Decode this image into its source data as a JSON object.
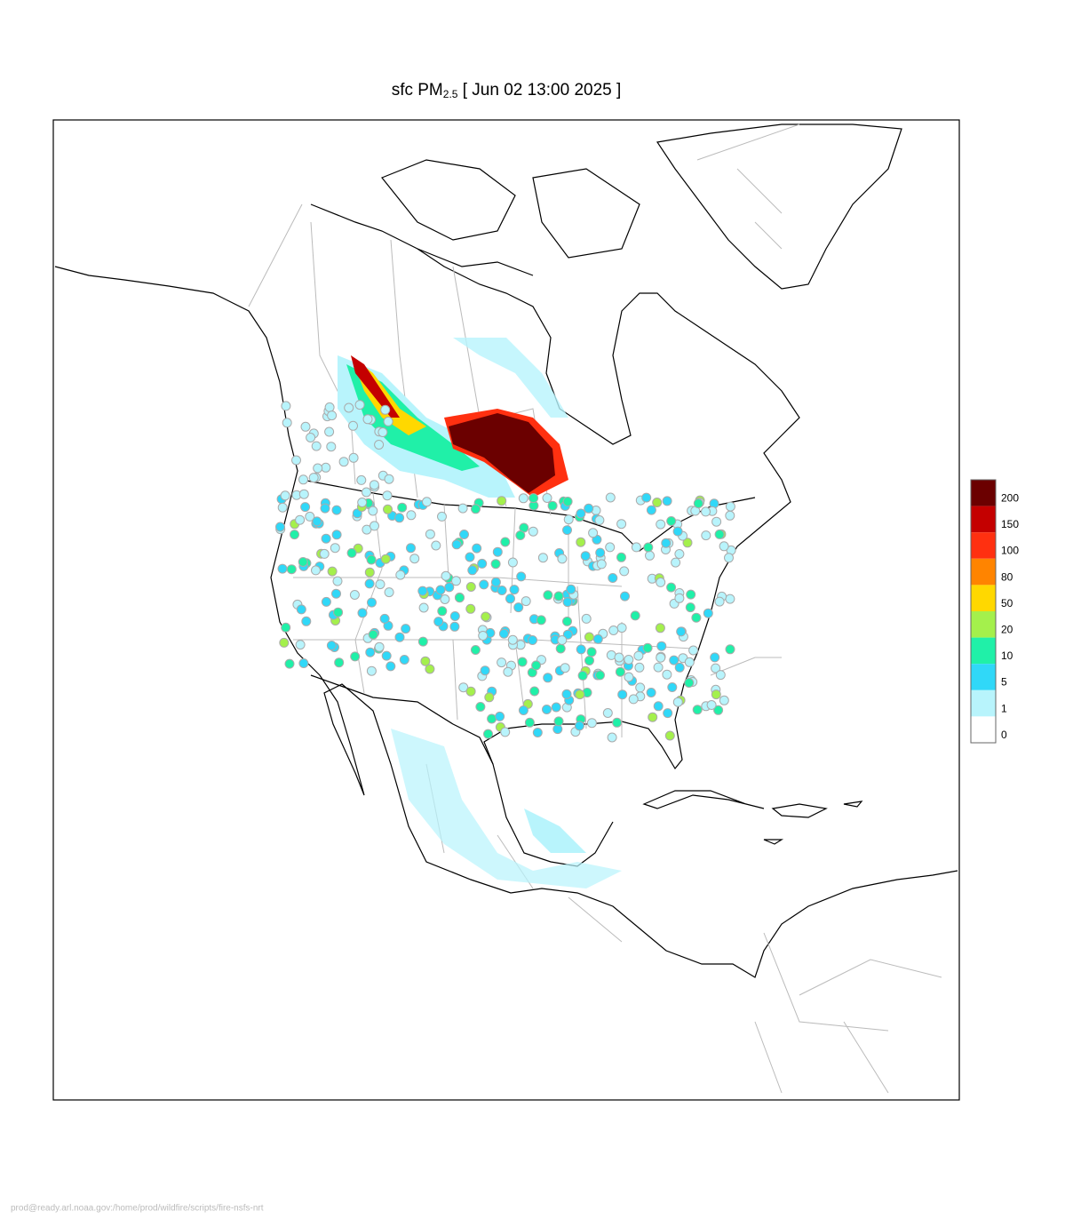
{
  "title": {
    "text": "sfc PM",
    "subscript": "2.5",
    "suffix": "[ Jun 02 13:00 2025 ]"
  },
  "legend": {
    "levels": [
      {
        "value": 200,
        "color": "#6b0000"
      },
      {
        "value": 150,
        "color": "#c40000"
      },
      {
        "value": 100,
        "color": "#ff3010"
      },
      {
        "value": 80,
        "color": "#ff8400"
      },
      {
        "value": 50,
        "color": "#ffd800"
      },
      {
        "value": 20,
        "color": "#a4f04c"
      },
      {
        "value": 10,
        "color": "#20f0a8"
      },
      {
        "value": 5,
        "color": "#30d8f8"
      },
      {
        "value": 1,
        "color": "#b8f4fc"
      },
      {
        "value": 0,
        "color": "#ffffff"
      }
    ]
  },
  "footer": "prod@ready.arl.noaa.gov:/home/prod/wildfire/scripts/fire-nsfs-nrt"
}
